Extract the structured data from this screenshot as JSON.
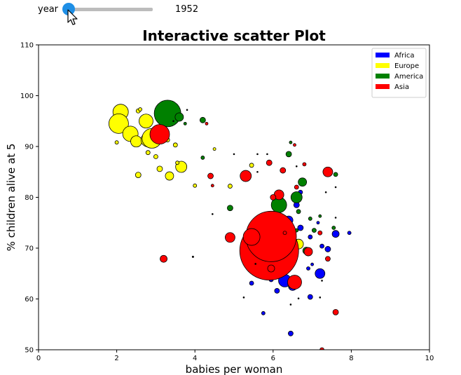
{
  "slider": {
    "label": "year",
    "value_text": "1952",
    "min": 1952,
    "max": 2015,
    "value": 1952,
    "thumb_color": "#1e8fe6",
    "track_color": "#bcbcbc"
  },
  "chart_data": {
    "type": "scatter",
    "title": "Interactive scatter Plot",
    "xlabel": "babies per woman",
    "ylabel": "% children alive at 5",
    "xlim": [
      0,
      10
    ],
    "ylim": [
      50,
      110
    ],
    "xticks": [
      0,
      2,
      4,
      6,
      8,
      10
    ],
    "yticks": [
      50,
      60,
      70,
      80,
      90,
      100,
      110
    ],
    "grid": false,
    "legend_position": "top-right",
    "series": [
      {
        "name": "Africa",
        "color": "#0000ff",
        "points": [
          {
            "x": 6.3,
            "y": 63.6,
            "s": 9
          },
          {
            "x": 6.5,
            "y": 62.5,
            "s": 6
          },
          {
            "x": 7.2,
            "y": 65.0,
            "s": 7
          },
          {
            "x": 6.1,
            "y": 61.6,
            "s": 3.5
          },
          {
            "x": 5.75,
            "y": 57.2,
            "s": 2.5
          },
          {
            "x": 6.45,
            "y": 53.2,
            "s": 3.5
          },
          {
            "x": 6.95,
            "y": 60.4,
            "s": 3.5
          },
          {
            "x": 7.6,
            "y": 72.8,
            "s": 5
          },
          {
            "x": 7.95,
            "y": 73.0,
            "s": 2.5
          },
          {
            "x": 6.6,
            "y": 78.5,
            "s": 4
          },
          {
            "x": 6.4,
            "y": 75.5,
            "s": 6
          },
          {
            "x": 6.7,
            "y": 74.0,
            "s": 4
          },
          {
            "x": 6.5,
            "y": 72.0,
            "s": 3
          },
          {
            "x": 7.4,
            "y": 69.8,
            "s": 4
          },
          {
            "x": 7.25,
            "y": 70.4,
            "s": 3
          },
          {
            "x": 5.95,
            "y": 63.8,
            "s": 3
          },
          {
            "x": 5.45,
            "y": 63.1,
            "s": 3
          },
          {
            "x": 6.1,
            "y": 67.0,
            "s": 3
          },
          {
            "x": 6.9,
            "y": 66.0,
            "s": 2.5
          },
          {
            "x": 7.0,
            "y": 66.8,
            "s": 2
          },
          {
            "x": 6.95,
            "y": 72.2,
            "s": 3
          },
          {
            "x": 6.7,
            "y": 81.0,
            "s": 3
          },
          {
            "x": 7.15,
            "y": 75.0,
            "s": 2
          },
          {
            "x": 5.9,
            "y": 66.5,
            "s": 2.5
          },
          {
            "x": 6.2,
            "y": 69.0,
            "s": 2
          },
          {
            "x": 5.5,
            "y": 65.5,
            "s": 2
          }
        ]
      },
      {
        "name": "Europe",
        "color": "#ffff00",
        "points": [
          {
            "x": 2.1,
            "y": 96.8,
            "s": 11
          },
          {
            "x": 2.05,
            "y": 94.5,
            "s": 14
          },
          {
            "x": 2.35,
            "y": 92.5,
            "s": 11
          },
          {
            "x": 2.75,
            "y": 95.0,
            "s": 10
          },
          {
            "x": 2.5,
            "y": 91.0,
            "s": 8
          },
          {
            "x": 2.8,
            "y": 91.3,
            "s": 10
          },
          {
            "x": 2.9,
            "y": 91.6,
            "s": 14
          },
          {
            "x": 3.65,
            "y": 86.0,
            "s": 8
          },
          {
            "x": 3.35,
            "y": 84.2,
            "s": 6
          },
          {
            "x": 2.55,
            "y": 84.4,
            "s": 4
          },
          {
            "x": 3.1,
            "y": 85.6,
            "s": 4
          },
          {
            "x": 3.0,
            "y": 88.0,
            "s": 3
          },
          {
            "x": 2.8,
            "y": 88.8,
            "s": 3
          },
          {
            "x": 3.5,
            "y": 90.3,
            "s": 3
          },
          {
            "x": 3.3,
            "y": 91.3,
            "s": 3
          },
          {
            "x": 2.0,
            "y": 90.8,
            "s": 2.5
          },
          {
            "x": 2.55,
            "y": 97.0,
            "s": 3
          },
          {
            "x": 2.6,
            "y": 97.3,
            "s": 2.5
          },
          {
            "x": 4.0,
            "y": 82.3,
            "s": 2.5
          },
          {
            "x": 4.9,
            "y": 82.2,
            "s": 3
          },
          {
            "x": 4.5,
            "y": 89.5,
            "s": 2
          },
          {
            "x": 5.45,
            "y": 86.3,
            "s": 3
          },
          {
            "x": 6.65,
            "y": 70.8,
            "s": 7
          },
          {
            "x": 6.5,
            "y": 72.0,
            "s": 4
          },
          {
            "x": 3.55,
            "y": 86.8,
            "s": 2.5
          }
        ]
      },
      {
        "name": "America",
        "color": "#008000",
        "points": [
          {
            "x": 3.3,
            "y": 96.5,
            "s": 19
          },
          {
            "x": 3.6,
            "y": 95.8,
            "s": 6
          },
          {
            "x": 4.2,
            "y": 95.2,
            "s": 4
          },
          {
            "x": 6.15,
            "y": 78.5,
            "s": 11
          },
          {
            "x": 6.6,
            "y": 80.0,
            "s": 8
          },
          {
            "x": 6.85,
            "y": 69.5,
            "s": 5
          },
          {
            "x": 4.9,
            "y": 77.9,
            "s": 4
          },
          {
            "x": 6.4,
            "y": 88.5,
            "s": 4
          },
          {
            "x": 6.75,
            "y": 83.0,
            "s": 6
          },
          {
            "x": 6.65,
            "y": 77.2,
            "s": 3
          },
          {
            "x": 7.55,
            "y": 74.0,
            "s": 2.5
          },
          {
            "x": 7.6,
            "y": 84.5,
            "s": 3
          },
          {
            "x": 6.95,
            "y": 75.8,
            "s": 2.5
          },
          {
            "x": 6.0,
            "y": 68.2,
            "s": 2
          },
          {
            "x": 7.2,
            "y": 76.3,
            "s": 2
          },
          {
            "x": 3.75,
            "y": 94.5,
            "s": 2
          },
          {
            "x": 6.3,
            "y": 70.0,
            "s": 2.5
          },
          {
            "x": 6.6,
            "y": 73.5,
            "s": 2.5
          },
          {
            "x": 7.05,
            "y": 73.5,
            "s": 3
          },
          {
            "x": 6.45,
            "y": 90.8,
            "s": 2
          },
          {
            "x": 4.2,
            "y": 87.8,
            "s": 2.5
          }
        ]
      },
      {
        "name": "Asia",
        "color": "#ff0000",
        "points": [
          {
            "x": 5.9,
            "y": 69.5,
            "s": 42
          },
          {
            "x": 5.95,
            "y": 72.3,
            "s": 36
          },
          {
            "x": 5.45,
            "y": 72.2,
            "s": 12
          },
          {
            "x": 6.5,
            "y": 63.0,
            "s": 7
          },
          {
            "x": 6.55,
            "y": 63.3,
            "s": 10
          },
          {
            "x": 6.9,
            "y": 69.3,
            "s": 6
          },
          {
            "x": 3.1,
            "y": 92.4,
            "s": 14
          },
          {
            "x": 6.15,
            "y": 80.5,
            "s": 7
          },
          {
            "x": 5.3,
            "y": 84.2,
            "s": 8
          },
          {
            "x": 7.4,
            "y": 85.0,
            "s": 7
          },
          {
            "x": 4.9,
            "y": 72.1,
            "s": 7
          },
          {
            "x": 3.2,
            "y": 67.9,
            "s": 5
          },
          {
            "x": 5.95,
            "y": 66.0,
            "s": 5
          },
          {
            "x": 7.6,
            "y": 57.4,
            "s": 4
          },
          {
            "x": 6.0,
            "y": 80.0,
            "s": 4
          },
          {
            "x": 6.25,
            "y": 85.3,
            "s": 4
          },
          {
            "x": 5.9,
            "y": 86.8,
            "s": 4
          },
          {
            "x": 4.4,
            "y": 84.2,
            "s": 4
          },
          {
            "x": 7.25,
            "y": 50.0,
            "s": 3
          },
          {
            "x": 6.6,
            "y": 82.0,
            "s": 3
          },
          {
            "x": 7.4,
            "y": 67.9,
            "s": 3.5
          },
          {
            "x": 6.3,
            "y": 73.0,
            "s": 2.5
          },
          {
            "x": 7.2,
            "y": 73.0,
            "s": 3
          },
          {
            "x": 4.3,
            "y": 94.5,
            "s": 2
          },
          {
            "x": 4.45,
            "y": 82.3,
            "s": 2
          },
          {
            "x": 6.55,
            "y": 90.3,
            "s": 2
          },
          {
            "x": 6.8,
            "y": 86.5,
            "s": 2.5
          }
        ]
      },
      {
        "name": "",
        "color": "#000000",
        "points": [
          {
            "x": 3.45,
            "y": 95.0,
            "s": 1
          },
          {
            "x": 3.8,
            "y": 97.2,
            "s": 1
          },
          {
            "x": 3.95,
            "y": 68.3,
            "s": 1.2
          },
          {
            "x": 4.45,
            "y": 76.7,
            "s": 1
          },
          {
            "x": 5.25,
            "y": 60.3,
            "s": 1
          },
          {
            "x": 5.0,
            "y": 88.5,
            "s": 1
          },
          {
            "x": 5.85,
            "y": 88.5,
            "s": 1
          },
          {
            "x": 6.45,
            "y": 58.9,
            "s": 1
          },
          {
            "x": 6.65,
            "y": 60.1,
            "s": 1
          },
          {
            "x": 7.6,
            "y": 76.0,
            "s": 1
          },
          {
            "x": 7.25,
            "y": 63.6,
            "s": 1
          },
          {
            "x": 5.55,
            "y": 66.9,
            "s": 1
          },
          {
            "x": 7.35,
            "y": 81.0,
            "s": 1
          },
          {
            "x": 7.6,
            "y": 82.0,
            "s": 1
          },
          {
            "x": 5.6,
            "y": 85.0,
            "s": 1
          },
          {
            "x": 6.6,
            "y": 86.1,
            "s": 1
          },
          {
            "x": 7.2,
            "y": 60.3,
            "s": 1
          },
          {
            "x": 5.6,
            "y": 88.5,
            "s": 1
          }
        ]
      }
    ]
  }
}
